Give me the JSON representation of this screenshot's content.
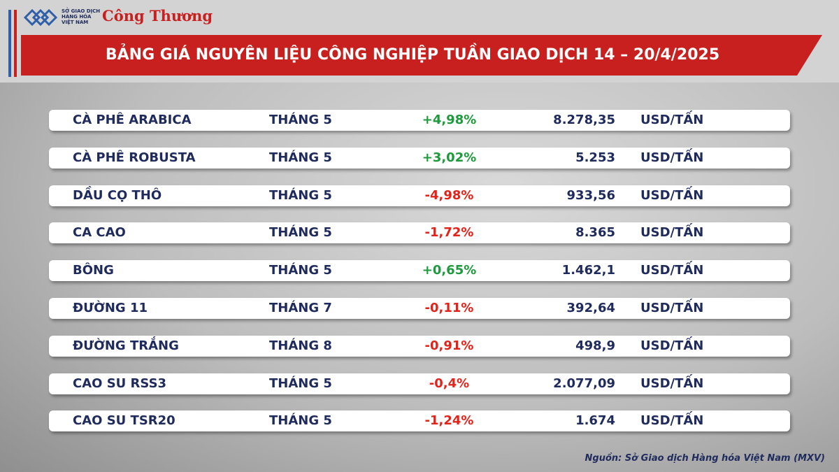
{
  "header": {
    "logo_text": "SỞ GIAO DỊCH HÀNG HÓA VIỆT NAM",
    "brand": "Công Thương",
    "title": "BẢNG GIÁ NGUYÊN LIỆU CÔNG NGHIỆP TUẦN GIAO DỊCH 14 – 20/4/2025"
  },
  "table": {
    "positive_color": "#1e9a3c",
    "negative_color": "#e2231a",
    "rows": [
      [
        "CÀ PHÊ ARABICA",
        "THÁNG 5",
        "+4,98%",
        "8.278,35",
        "USD/TẤN"
      ],
      [
        "CÀ PHÊ ROBUSTA",
        "THÁNG 5",
        "+3,02%",
        "5.253",
        "USD/TẤN"
      ],
      [
        "DẦU CỌ THÔ",
        "THÁNG 5",
        "-4,98%",
        "933,56",
        "USD/TẤN"
      ],
      [
        "CA CAO",
        "THÁNG 5",
        "-1,72%",
        "8.365",
        "USD/TẤN"
      ],
      [
        "BÔNG",
        "THÁNG 5",
        "+0,65%",
        "1.462,1",
        "USD/TẤN"
      ],
      [
        "ĐƯỜNG 11",
        "THÁNG 7",
        "-0,11%",
        "392,64",
        "USD/TẤN"
      ],
      [
        "ĐƯỜNG TRẮNG",
        "THÁNG 8",
        "-0,91%",
        "498,9",
        "USD/TẤN"
      ],
      [
        "CAO SU RSS3",
        "THÁNG 5",
        "-0,4%",
        "2.077,09",
        "USD/TẤN"
      ],
      [
        "CAO SU TSR20",
        "THÁNG 5",
        "-1,24%",
        "1.674",
        "USD/TẤN"
      ]
    ]
  },
  "footer": {
    "source": "Nguồn: Sở Giao dịch Hàng hóa Việt Nam (MXV)"
  }
}
